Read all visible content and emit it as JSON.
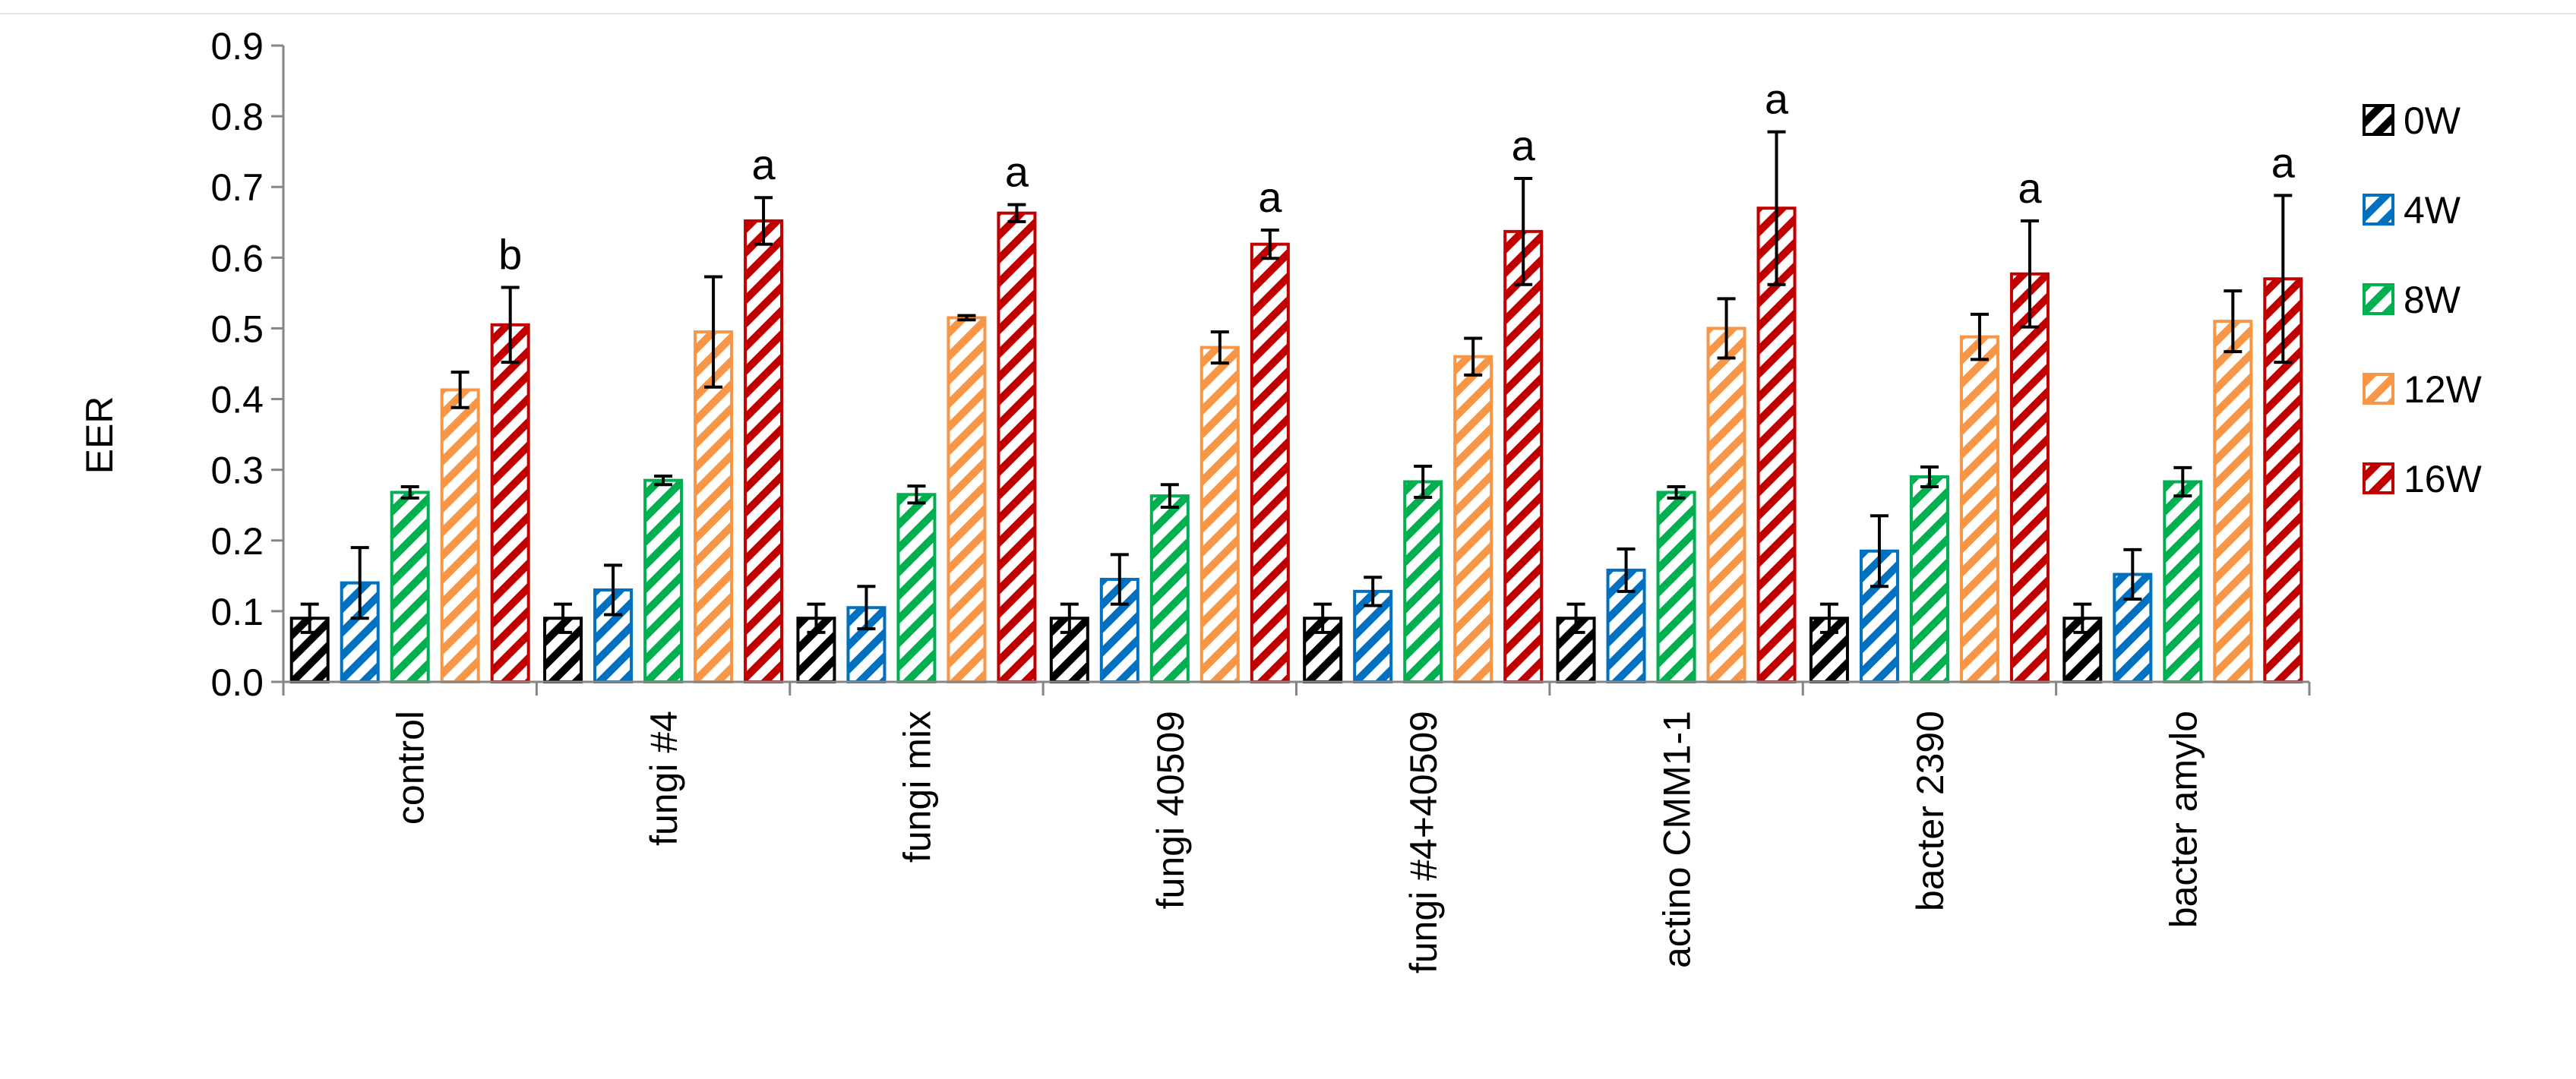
{
  "chart_data": {
    "type": "bar",
    "title": "",
    "xlabel": "",
    "ylabel": "EER",
    "ylim": [
      0,
      0.9
    ],
    "yticks": [
      "0.0",
      "0.1",
      "0.2",
      "0.3",
      "0.4",
      "0.5",
      "0.6",
      "0.7",
      "0.8",
      "0.9"
    ],
    "grid": false,
    "legend_position": "right",
    "bar_pattern": "diagonal-hatch",
    "categories": [
      "control",
      "fungi #4",
      "fungi mix",
      "fungi 40509",
      "fungi #4+40509",
      "actino CMM1-1",
      "bacter 2390",
      "bacter amylo"
    ],
    "series": [
      {
        "name": "0W",
        "color": "#000000",
        "values": [
          0.09,
          0.09,
          0.09,
          0.09,
          0.09,
          0.09,
          0.09,
          0.09
        ],
        "errors": [
          0.02,
          0.02,
          0.02,
          0.02,
          0.02,
          0.02,
          0.02,
          0.02
        ]
      },
      {
        "name": "4W",
        "color": "#0070C0",
        "values": [
          0.14,
          0.13,
          0.105,
          0.145,
          0.128,
          0.158,
          0.185,
          0.152
        ],
        "errors": [
          0.05,
          0.035,
          0.03,
          0.035,
          0.02,
          0.03,
          0.05,
          0.035
        ]
      },
      {
        "name": "8W",
        "color": "#00B050",
        "values": [
          0.268,
          0.285,
          0.265,
          0.263,
          0.283,
          0.268,
          0.29,
          0.283
        ],
        "errors": [
          0.008,
          0.006,
          0.012,
          0.016,
          0.022,
          0.008,
          0.014,
          0.02
        ]
      },
      {
        "name": "12W",
        "color": "#F79646",
        "values": [
          0.413,
          0.495,
          0.515,
          0.473,
          0.46,
          0.5,
          0.488,
          0.51
        ],
        "errors": [
          0.025,
          0.078,
          0.003,
          0.022,
          0.026,
          0.042,
          0.032,
          0.043
        ]
      },
      {
        "name": "16W",
        "color": "#C00000",
        "values": [
          0.505,
          0.652,
          0.663,
          0.619,
          0.637,
          0.67,
          0.577,
          0.57
        ],
        "errors": [
          0.053,
          0.033,
          0.012,
          0.02,
          0.075,
          0.108,
          0.075,
          0.118
        ]
      }
    ],
    "annotations": [
      "b",
      "a",
      "a",
      "a",
      "a",
      "a",
      "a",
      "a"
    ]
  }
}
